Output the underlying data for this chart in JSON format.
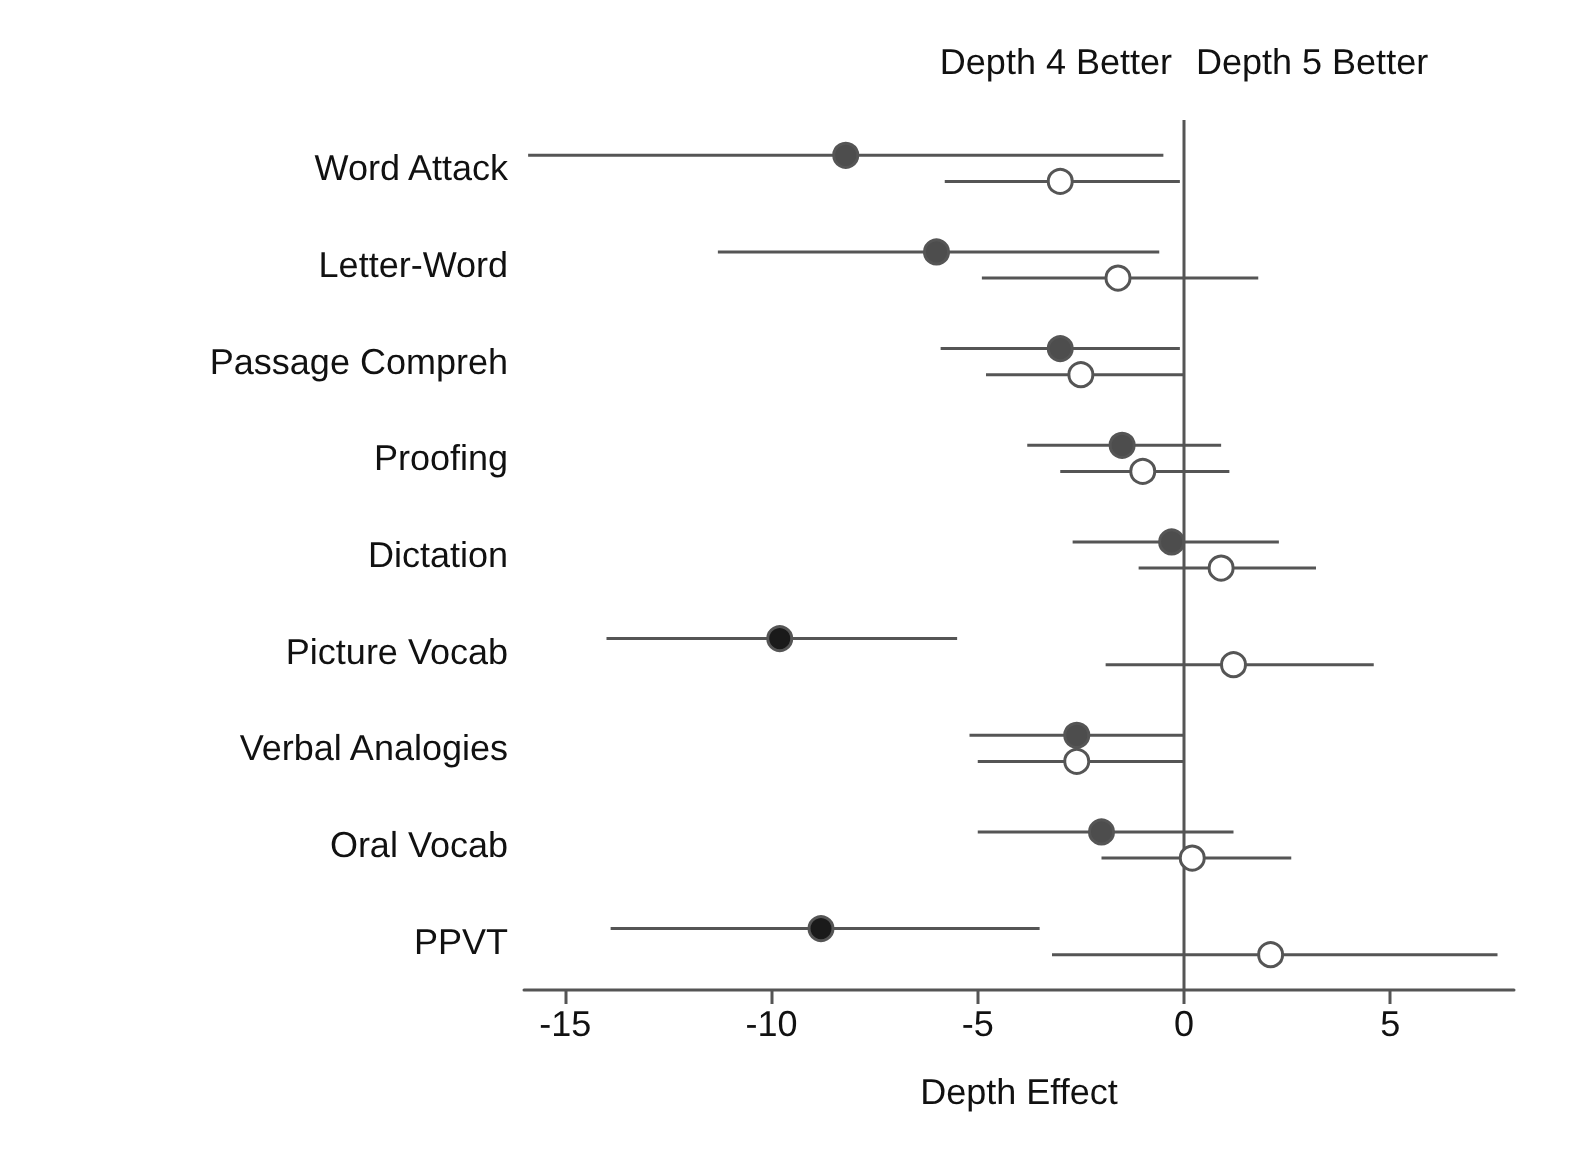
{
  "chart_data": {
    "type": "scatter",
    "orientation": "horizontal",
    "xlabel": "Depth Effect",
    "categories": [
      "Word Attack",
      "Letter-Word",
      "Passage Compreh",
      "Proofing",
      "Dictation",
      "Picture Vocab",
      "Verbal Analogies",
      "Oral Vocab",
      "PPVT"
    ],
    "series": [
      {
        "colors": [
          "#4d4d4d",
          "#4d4d4d",
          "#4d4d4d",
          "#4d4d4d",
          "#4d4d4d",
          "#1a1a1a",
          "#4d4d4d",
          "#4d4d4d",
          "#1a1a1a"
        ],
        "values": [
          -8.2,
          -6.0,
          -3.0,
          -1.5,
          -0.3,
          -9.8,
          -2.6,
          -2.0,
          -8.8
        ],
        "errors": [
          [
            -15.9,
            -0.5
          ],
          [
            -11.3,
            -0.6
          ],
          [
            -5.9,
            -0.1
          ],
          [
            -3.8,
            0.9
          ],
          [
            -2.7,
            2.3
          ],
          [
            -14.0,
            -5.5
          ],
          [
            -5.2,
            0.0
          ],
          [
            -5.0,
            1.2
          ],
          [
            -13.9,
            -3.5
          ]
        ]
      },
      {
        "color": "#ffffff",
        "values": [
          -3.0,
          -1.6,
          -2.5,
          -1.0,
          0.9,
          1.2,
          -2.6,
          0.2,
          2.1
        ],
        "errors": [
          [
            -5.8,
            -0.1
          ],
          [
            -4.9,
            1.8
          ],
          [
            -4.8,
            0.0
          ],
          [
            -3.0,
            1.1
          ],
          [
            -1.1,
            3.2
          ],
          [
            -1.9,
            4.6
          ],
          [
            -5.0,
            0.0
          ],
          [
            -2.0,
            2.6
          ],
          [
            -3.2,
            7.6
          ]
        ]
      }
    ],
    "xlim": [
      -16,
      8
    ],
    "xticks": [
      -15,
      -10,
      -5,
      0,
      5
    ],
    "ref_lines": [
      {
        "axis": "x",
        "value": 0,
        "label": null
      }
    ],
    "annotations": [
      "Depth 4 Better",
      "Depth 5 Better"
    ],
    "marker": "circle",
    "grid": false
  }
}
